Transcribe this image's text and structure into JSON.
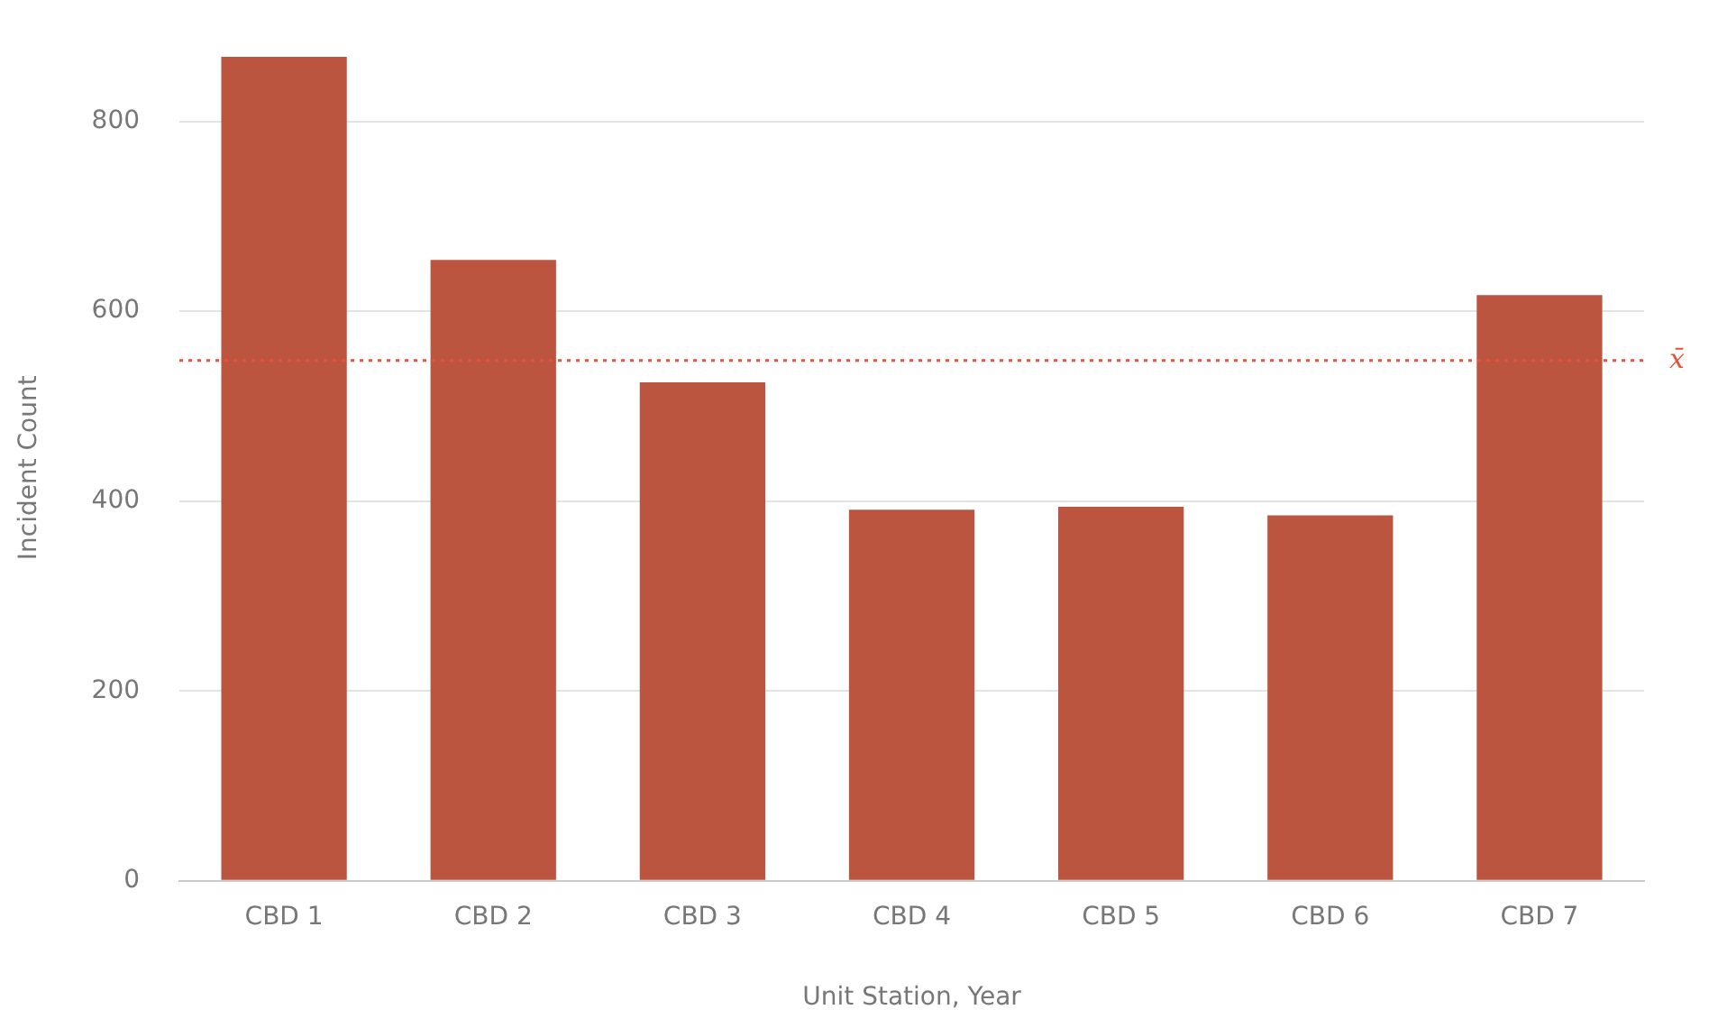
{
  "chart_data": {
    "type": "bar",
    "xlabel": "Unit Station, Year",
    "ylabel": "Incident Count",
    "categories": [
      "CBD 1",
      "CBD 2",
      "CBD 3",
      "CBD 4",
      "CBD 5",
      "CBD 6",
      "CBD 7"
    ],
    "values": [
      868,
      654,
      525,
      391,
      394,
      385,
      617
    ],
    "color": "#bb5540",
    "ylim": [
      0,
      870
    ],
    "yticks": [
      0,
      200,
      400,
      600,
      800
    ],
    "grid": "y",
    "legend": false,
    "ref_lines": [
      {
        "axis": "y",
        "value": 548,
        "label": "x̄",
        "color": "#e8503a",
        "line_style": "dotted"
      }
    ]
  }
}
